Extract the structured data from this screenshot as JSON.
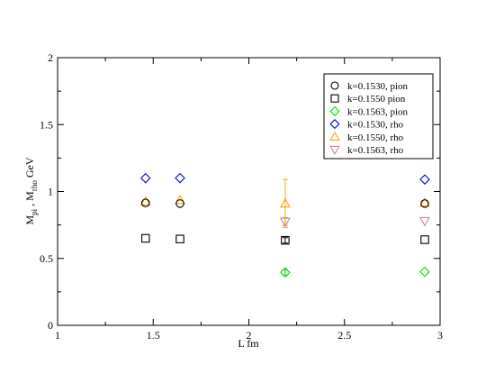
{
  "chart_data": {
    "type": "scatter",
    "title": "",
    "xlabel": "L fm",
    "ylabel_parts": {
      "main1": "M",
      "sub1": "pi",
      "sep": " , M",
      "sub2": "rho",
      "tail": " GeV"
    },
    "xlim": [
      1,
      3
    ],
    "ylim": [
      0,
      2
    ],
    "xticks": [
      1,
      1.5,
      2,
      2.5,
      3
    ],
    "xtick_labels": [
      "1",
      "1.5",
      "2",
      "2.5",
      "3"
    ],
    "yticks": [
      0,
      0.5,
      1,
      1.5,
      2
    ],
    "ytick_labels": [
      "0",
      "0.5",
      "1",
      "1.5",
      "2"
    ],
    "grid": false,
    "legend_position": "top-right",
    "series": [
      {
        "name": "k=0.1530, pion",
        "marker": "circle",
        "color": "#000000",
        "points": [
          {
            "x": 1.46,
            "y": 0.915,
            "err": 0.0
          },
          {
            "x": 1.64,
            "y": 0.91,
            "err": 0.0
          },
          {
            "x": 2.92,
            "y": 0.91,
            "err": 0.0
          }
        ]
      },
      {
        "name": "k=0.1550  pion",
        "marker": "square",
        "color": "#000000",
        "points": [
          {
            "x": 1.46,
            "y": 0.65,
            "err": 0.0
          },
          {
            "x": 1.64,
            "y": 0.645,
            "err": 0.0
          },
          {
            "x": 2.19,
            "y": 0.635,
            "err": 0.02
          },
          {
            "x": 2.92,
            "y": 0.64,
            "err": 0.0
          }
        ]
      },
      {
        "name": "k=0.1563, pion",
        "marker": "diamond",
        "color": "#00dd00",
        "points": [
          {
            "x": 2.19,
            "y": 0.395,
            "err": 0.02
          },
          {
            "x": 2.92,
            "y": 0.4,
            "err": 0.0
          }
        ]
      },
      {
        "name": "k=0.1530, rho",
        "marker": "diamond",
        "color": "#0000ee",
        "points": [
          {
            "x": 1.46,
            "y": 1.1,
            "err": 0.0
          },
          {
            "x": 1.64,
            "y": 1.1,
            "err": 0.0
          },
          {
            "x": 2.92,
            "y": 1.09,
            "err": 0.0
          }
        ]
      },
      {
        "name": "k=0.1550, rho",
        "marker": "triangle-up",
        "color": "#ffa500",
        "points": [
          {
            "x": 1.46,
            "y": 0.925,
            "err": 0.0
          },
          {
            "x": 1.64,
            "y": 0.935,
            "err": 0.0
          },
          {
            "x": 2.19,
            "y": 0.91,
            "err": 0.18
          },
          {
            "x": 2.92,
            "y": 0.915,
            "err": 0.0
          }
        ]
      },
      {
        "name": "k=0.1563, rho",
        "marker": "triangle-down",
        "color": "#cc8899",
        "points": [
          {
            "x": 2.19,
            "y": 0.775,
            "err": 0.03
          },
          {
            "x": 2.92,
            "y": 0.78,
            "err": 0.0
          }
        ]
      }
    ]
  }
}
